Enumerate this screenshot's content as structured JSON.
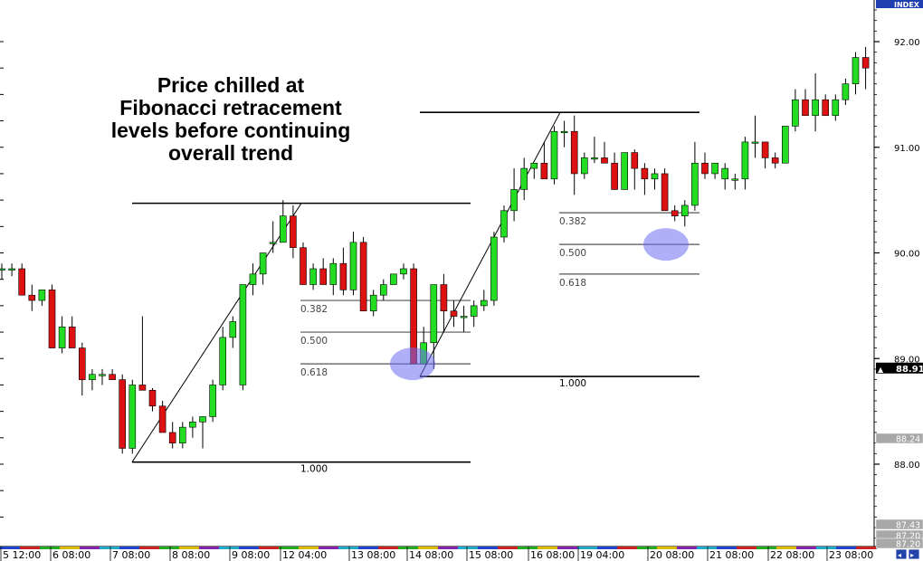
{
  "chart_data": {
    "type": "candlestick",
    "instrument_tag": "INDEX",
    "annotation": [
      "Price chilled at",
      "Fibonacci retracement",
      "levels before continuing",
      "overall trend"
    ],
    "y_ticks": [
      92.0,
      91.0,
      90.0,
      89.0,
      88.0
    ],
    "y_tick_labels": [
      "92.00",
      "91.00",
      "90.00",
      "89.00",
      "88.00"
    ],
    "ylim": [
      87.1,
      92.4
    ],
    "current_price": "88.91",
    "side_labels": [
      "88.24",
      "87.43",
      "87.20",
      "87.20"
    ],
    "x_labels": [
      "5 12:00",
      "6 08:00",
      "7 08:00",
      "8 08:00",
      "9 08:00",
      "12 04:00",
      "13 08:00",
      "14 08:00",
      "15 08:00",
      "16 08:00",
      "19 04:00",
      "20 08:00",
      "21 08:00",
      "22 08:00",
      "23 08:00"
    ],
    "grid": false,
    "candles": [
      {
        "o": 89.85,
        "h": 89.9,
        "l": 89.75,
        "c": 89.85
      },
      {
        "o": 89.85,
        "h": 89.9,
        "l": 89.78,
        "c": 89.85
      },
      {
        "o": 89.85,
        "h": 89.9,
        "l": 89.6,
        "c": 89.6
      },
      {
        "o": 89.6,
        "h": 89.7,
        "l": 89.45,
        "c": 89.55
      },
      {
        "o": 89.55,
        "h": 89.65,
        "l": 89.5,
        "c": 89.65
      },
      {
        "o": 89.65,
        "h": 89.7,
        "l": 89.1,
        "c": 89.1
      },
      {
        "o": 89.1,
        "h": 89.4,
        "l": 89.05,
        "c": 89.3
      },
      {
        "o": 89.3,
        "h": 89.4,
        "l": 89.1,
        "c": 89.1
      },
      {
        "o": 89.1,
        "h": 89.15,
        "l": 88.65,
        "c": 88.8
      },
      {
        "o": 88.8,
        "h": 88.9,
        "l": 88.7,
        "c": 88.85
      },
      {
        "o": 88.85,
        "h": 88.9,
        "l": 88.75,
        "c": 88.85
      },
      {
        "o": 88.85,
        "h": 88.9,
        "l": 88.8,
        "c": 88.8
      },
      {
        "o": 88.8,
        "h": 88.85,
        "l": 88.1,
        "c": 88.15
      },
      {
        "o": 88.15,
        "h": 88.8,
        "l": 88.1,
        "c": 88.75
      },
      {
        "o": 88.75,
        "h": 89.4,
        "l": 88.7,
        "c": 88.7
      },
      {
        "o": 88.7,
        "h": 88.72,
        "l": 88.5,
        "c": 88.55
      },
      {
        "o": 88.55,
        "h": 88.6,
        "l": 88.3,
        "c": 88.3
      },
      {
        "o": 88.3,
        "h": 88.4,
        "l": 88.15,
        "c": 88.2
      },
      {
        "o": 88.2,
        "h": 88.4,
        "l": 88.15,
        "c": 88.35
      },
      {
        "o": 88.35,
        "h": 88.45,
        "l": 88.25,
        "c": 88.4
      },
      {
        "o": 88.4,
        "h": 88.45,
        "l": 88.15,
        "c": 88.45
      },
      {
        "o": 88.45,
        "h": 88.8,
        "l": 88.4,
        "c": 88.75
      },
      {
        "o": 88.75,
        "h": 89.3,
        "l": 88.7,
        "c": 89.2
      },
      {
        "o": 89.2,
        "h": 89.4,
        "l": 89.1,
        "c": 89.35
      },
      {
        "o": 88.75,
        "h": 89.7,
        "l": 88.7,
        "c": 89.7
      },
      {
        "o": 89.7,
        "h": 89.9,
        "l": 89.6,
        "c": 89.8
      },
      {
        "o": 89.8,
        "h": 90.0,
        "l": 89.7,
        "c": 90.0
      },
      {
        "o": 90.1,
        "h": 90.3,
        "l": 90.0,
        "c": 90.1
      },
      {
        "o": 90.1,
        "h": 90.5,
        "l": 90.1,
        "c": 90.35
      },
      {
        "o": 90.35,
        "h": 90.45,
        "l": 89.95,
        "c": 90.05
      },
      {
        "o": 90.05,
        "h": 90.1,
        "l": 89.7,
        "c": 89.7
      },
      {
        "o": 89.7,
        "h": 89.9,
        "l": 89.65,
        "c": 89.85
      },
      {
        "o": 89.85,
        "h": 89.95,
        "l": 89.7,
        "c": 89.7
      },
      {
        "o": 89.7,
        "h": 89.95,
        "l": 89.6,
        "c": 89.9
      },
      {
        "o": 89.9,
        "h": 90.05,
        "l": 89.6,
        "c": 89.65
      },
      {
        "o": 89.65,
        "h": 90.2,
        "l": 89.6,
        "c": 90.1
      },
      {
        "o": 90.1,
        "h": 90.15,
        "l": 89.45,
        "c": 89.45
      },
      {
        "o": 89.45,
        "h": 89.65,
        "l": 89.4,
        "c": 89.6
      },
      {
        "o": 89.6,
        "h": 89.75,
        "l": 89.55,
        "c": 89.7
      },
      {
        "o": 89.7,
        "h": 89.8,
        "l": 89.7,
        "c": 89.8
      },
      {
        "o": 89.8,
        "h": 89.9,
        "l": 89.75,
        "c": 89.85
      },
      {
        "o": 89.85,
        "h": 89.9,
        "l": 88.95,
        "c": 88.95
      },
      {
        "o": 88.95,
        "h": 89.3,
        "l": 88.95,
        "c": 89.15
      },
      {
        "o": 89.15,
        "h": 89.7,
        "l": 88.9,
        "c": 89.7
      },
      {
        "o": 89.7,
        "h": 89.8,
        "l": 89.25,
        "c": 89.45
      },
      {
        "o": 89.45,
        "h": 89.55,
        "l": 89.3,
        "c": 89.4
      },
      {
        "o": 89.4,
        "h": 89.5,
        "l": 89.25,
        "c": 89.4
      },
      {
        "o": 89.4,
        "h": 89.55,
        "l": 89.3,
        "c": 89.5
      },
      {
        "o": 89.5,
        "h": 89.65,
        "l": 89.45,
        "c": 89.55
      },
      {
        "o": 89.55,
        "h": 90.2,
        "l": 89.5,
        "c": 90.15
      },
      {
        "o": 90.15,
        "h": 90.45,
        "l": 90.1,
        "c": 90.4
      },
      {
        "o": 90.4,
        "h": 90.8,
        "l": 90.3,
        "c": 90.6
      },
      {
        "o": 90.6,
        "h": 90.9,
        "l": 90.5,
        "c": 90.8
      },
      {
        "o": 90.8,
        "h": 90.85,
        "l": 90.7,
        "c": 90.85
      },
      {
        "o": 90.85,
        "h": 91.05,
        "l": 90.7,
        "c": 90.7
      },
      {
        "o": 90.7,
        "h": 91.2,
        "l": 90.65,
        "c": 91.15
      },
      {
        "o": 91.15,
        "h": 91.25,
        "l": 91.0,
        "c": 91.15
      },
      {
        "o": 91.15,
        "h": 91.3,
        "l": 90.55,
        "c": 90.75
      },
      {
        "o": 90.75,
        "h": 90.95,
        "l": 90.7,
        "c": 90.9
      },
      {
        "o": 90.9,
        "h": 91.1,
        "l": 90.85,
        "c": 90.9
      },
      {
        "o": 90.9,
        "h": 91.05,
        "l": 90.85,
        "c": 90.85
      },
      {
        "o": 90.85,
        "h": 90.95,
        "l": 90.6,
        "c": 90.6
      },
      {
        "o": 90.6,
        "h": 90.95,
        "l": 90.6,
        "c": 90.95
      },
      {
        "o": 90.95,
        "h": 90.98,
        "l": 90.6,
        "c": 90.8
      },
      {
        "o": 90.8,
        "h": 90.85,
        "l": 90.55,
        "c": 90.7
      },
      {
        "o": 90.7,
        "h": 90.8,
        "l": 90.6,
        "c": 90.75
      },
      {
        "o": 90.75,
        "h": 90.8,
        "l": 90.45,
        "c": 90.4
      },
      {
        "o": 90.4,
        "h": 90.45,
        "l": 90.3,
        "c": 90.35
      },
      {
        "o": 90.35,
        "h": 90.5,
        "l": 90.25,
        "c": 90.45
      },
      {
        "o": 90.45,
        "h": 91.05,
        "l": 90.4,
        "c": 90.85
      },
      {
        "o": 90.85,
        "h": 90.95,
        "l": 90.7,
        "c": 90.75
      },
      {
        "o": 90.75,
        "h": 90.85,
        "l": 90.7,
        "c": 90.85
      },
      {
        "o": 90.7,
        "h": 90.85,
        "l": 90.6,
        "c": 90.8
      },
      {
        "o": 90.7,
        "h": 90.75,
        "l": 90.6,
        "c": 90.7
      },
      {
        "o": 90.7,
        "h": 91.1,
        "l": 90.6,
        "c": 91.05
      },
      {
        "o": 91.05,
        "h": 91.3,
        "l": 90.9,
        "c": 91.05
      },
      {
        "o": 91.05,
        "h": 91.05,
        "l": 90.8,
        "c": 90.9
      },
      {
        "o": 90.9,
        "h": 90.95,
        "l": 90.8,
        "c": 90.85
      },
      {
        "o": 90.85,
        "h": 91.2,
        "l": 90.85,
        "c": 91.2
      },
      {
        "o": 91.2,
        "h": 91.55,
        "l": 91.15,
        "c": 91.45
      },
      {
        "o": 91.45,
        "h": 91.55,
        "l": 91.3,
        "c": 91.3
      },
      {
        "o": 91.3,
        "h": 91.7,
        "l": 91.15,
        "c": 91.45
      },
      {
        "o": 91.45,
        "h": 91.5,
        "l": 91.3,
        "c": 91.3
      },
      {
        "o": 91.3,
        "h": 91.5,
        "l": 91.25,
        "c": 91.45
      },
      {
        "o": 91.45,
        "h": 91.65,
        "l": 91.4,
        "c": 91.6
      },
      {
        "o": 91.6,
        "h": 91.9,
        "l": 91.5,
        "c": 91.85
      },
      {
        "o": 91.85,
        "h": 91.95,
        "l": 91.55,
        "c": 91.75
      }
    ],
    "fib_a": {
      "levels": [
        {
          "label": "0.382",
          "value": 89.55
        },
        {
          "label": "0.500",
          "value": 89.25
        },
        {
          "label": "0.618",
          "value": 88.95
        },
        {
          "label": "1.000",
          "value": 88.02
        }
      ],
      "high": 90.47,
      "low": 88.02
    },
    "fib_b": {
      "levels": [
        {
          "label": "0.382",
          "value": 90.38
        },
        {
          "label": "0.500",
          "value": 90.08
        },
        {
          "label": "0.618",
          "value": 89.8
        },
        {
          "label": "1.000",
          "value": 88.83
        }
      ],
      "high": 91.33,
      "low": 88.83
    }
  }
}
